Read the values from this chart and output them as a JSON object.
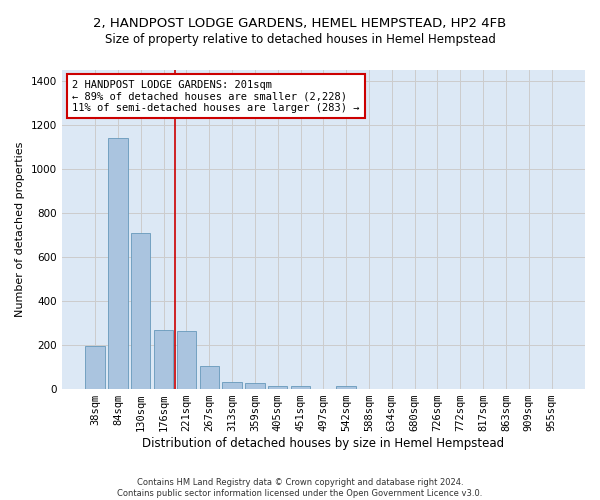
{
  "title_line1": "2, HANDPOST LODGE GARDENS, HEMEL HEMPSTEAD, HP2 4FB",
  "title_line2": "Size of property relative to detached houses in Hemel Hempstead",
  "xlabel": "Distribution of detached houses by size in Hemel Hempstead",
  "ylabel": "Number of detached properties",
  "footnote": "Contains HM Land Registry data © Crown copyright and database right 2024.\nContains public sector information licensed under the Open Government Licence v3.0.",
  "bar_labels": [
    "38sqm",
    "84sqm",
    "130sqm",
    "176sqm",
    "221sqm",
    "267sqm",
    "313sqm",
    "359sqm",
    "405sqm",
    "451sqm",
    "497sqm",
    "542sqm",
    "588sqm",
    "634sqm",
    "680sqm",
    "726sqm",
    "772sqm",
    "817sqm",
    "863sqm",
    "909sqm",
    "955sqm"
  ],
  "bar_values": [
    195,
    1140,
    710,
    270,
    265,
    105,
    33,
    27,
    13,
    12,
    0,
    14,
    0,
    0,
    0,
    0,
    0,
    0,
    0,
    0,
    0
  ],
  "bar_color": "#aac4df",
  "bar_edge_color": "#6699bb",
  "vline_color": "#cc0000",
  "vline_x": 3.5,
  "annotation_text": "2 HANDPOST LODGE GARDENS: 201sqm\n← 89% of detached houses are smaller (2,228)\n11% of semi-detached houses are larger (283) →",
  "annotation_box_color": "#ffffff",
  "annotation_box_edge": "#cc0000",
  "ylim": [
    0,
    1450
  ],
  "yticks": [
    0,
    200,
    400,
    600,
    800,
    1000,
    1200,
    1400
  ],
  "grid_color": "#cccccc",
  "bg_color": "#dce8f5",
  "title1_fontsize": 9.5,
  "title2_fontsize": 8.5,
  "xlabel_fontsize": 8.5,
  "ylabel_fontsize": 8,
  "tick_fontsize": 7.5,
  "annot_fontsize": 7.5
}
